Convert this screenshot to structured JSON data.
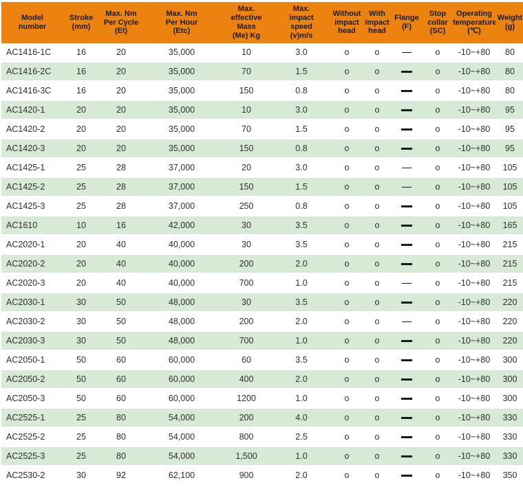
{
  "colors": {
    "header_bg": "#EC8210",
    "stripe_bg": "#D7EAD5",
    "header_text": "#1B1B24",
    "cell_text": "#2E2E2E",
    "dash_color": "#1A1A1A"
  },
  "legend": {
    "circle_mark": "o",
    "dash_thin_meaning": "thin horizontal dash mark",
    "dash_bold_meaning": "bold horizontal dash mark"
  },
  "table": {
    "columns": [
      {
        "key": "model",
        "label": "Model number",
        "lines": [
          "Model",
          "number"
        ]
      },
      {
        "key": "stroke",
        "label": "Stroke (mm)",
        "lines": [
          "Stroke",
          "(mm)"
        ]
      },
      {
        "key": "per_cycle",
        "label": "Max. Nm Per Cycle (Et)",
        "lines": [
          "Max. Nm",
          "Per Cycle",
          "(Et)"
        ]
      },
      {
        "key": "per_hour",
        "label": "Max. Nm Per Hour (Etc)",
        "lines": [
          "Max. Nm",
          "Per Hour",
          "(Etc)"
        ]
      },
      {
        "key": "mass",
        "label": "Max. effective Mass (Me) Kg",
        "lines": [
          "Max.",
          "effective",
          "Mass",
          "(Me) Kg"
        ]
      },
      {
        "key": "speed",
        "label": "Max. impact speed (v)m/s",
        "lines": [
          "Max.",
          "impact",
          "speed",
          "(v)m/s"
        ]
      },
      {
        "key": "without_head",
        "label": "Without impact head",
        "lines": [
          "Without",
          "impact",
          "head"
        ]
      },
      {
        "key": "with_head",
        "label": "With impact head",
        "lines": [
          "With",
          "impact",
          "head"
        ]
      },
      {
        "key": "flange",
        "label": "Flange (F)",
        "lines": [
          "Flange",
          "(F)"
        ]
      },
      {
        "key": "stop_collar",
        "label": "Stop collar (SC)",
        "lines": [
          "Stop",
          "collar",
          "(SC)"
        ]
      },
      {
        "key": "temp",
        "label": "Operating temperature (℃)",
        "lines": [
          "Operating",
          "temperature",
          "(℃)"
        ]
      },
      {
        "key": "weight",
        "label": "Weight (g)",
        "lines": [
          "Weight",
          "(g)"
        ]
      }
    ],
    "rows": [
      {
        "model": "AC1416-1C",
        "stroke": "16",
        "per_cycle": "20",
        "per_hour": "35,000",
        "mass": "10",
        "speed": "3.0",
        "without_head": "o",
        "with_head": "o",
        "flange": "dash-thin",
        "stop_collar": "o",
        "temp": "-10~+80",
        "weight": "80"
      },
      {
        "model": "AC1416-2C",
        "stroke": "16",
        "per_cycle": "20",
        "per_hour": "35,000",
        "mass": "70",
        "speed": "1.5",
        "without_head": "o",
        "with_head": "o",
        "flange": "dash-bold",
        "stop_collar": "o",
        "temp": "-10~+80",
        "weight": "80"
      },
      {
        "model": "AC1416-3C",
        "stroke": "16",
        "per_cycle": "20",
        "per_hour": "35,000",
        "mass": "150",
        "speed": "0.8",
        "without_head": "o",
        "with_head": "o",
        "flange": "dash-bold",
        "stop_collar": "o",
        "temp": "-10~+80",
        "weight": "80"
      },
      {
        "model": "AC1420-1",
        "stroke": "20",
        "per_cycle": "20",
        "per_hour": "35,000",
        "mass": "10",
        "speed": "3.0",
        "without_head": "o",
        "with_head": "o",
        "flange": "dash-bold",
        "stop_collar": "o",
        "temp": "-10~+80",
        "weight": "95"
      },
      {
        "model": "AC1420-2",
        "stroke": "20",
        "per_cycle": "20",
        "per_hour": "35,000",
        "mass": "70",
        "speed": "1.5",
        "without_head": "o",
        "with_head": "o",
        "flange": "dash-bold",
        "stop_collar": "o",
        "temp": "-10~+80",
        "weight": "95"
      },
      {
        "model": "AC1420-3",
        "stroke": "20",
        "per_cycle": "20",
        "per_hour": "35,000",
        "mass": "150",
        "speed": "0.8",
        "without_head": "o",
        "with_head": "o",
        "flange": "dash-bold",
        "stop_collar": "o",
        "temp": "-10~+80",
        "weight": "95"
      },
      {
        "model": "AC1425-1",
        "stroke": "25",
        "per_cycle": "28",
        "per_hour": "37,000",
        "mass": "20",
        "speed": "3.0",
        "without_head": "o",
        "with_head": "o",
        "flange": "dash-thin",
        "stop_collar": "o",
        "temp": "-10~+80",
        "weight": "105"
      },
      {
        "model": "AC1425-2",
        "stroke": "25",
        "per_cycle": "28",
        "per_hour": "37,000",
        "mass": "150",
        "speed": "1.5",
        "without_head": "o",
        "with_head": "o",
        "flange": "dash-thin",
        "stop_collar": "o",
        "temp": "-10~+80",
        "weight": "105"
      },
      {
        "model": "AC1425-3",
        "stroke": "25",
        "per_cycle": "28",
        "per_hour": "37,000",
        "mass": "250",
        "speed": "0.8",
        "without_head": "o",
        "with_head": "o",
        "flange": "dash-bold",
        "stop_collar": "o",
        "temp": "-10~+80",
        "weight": "105"
      },
      {
        "model": "AC1610",
        "stroke": "10",
        "per_cycle": "16",
        "per_hour": "42,000",
        "mass": "30",
        "speed": "3.5",
        "without_head": "o",
        "with_head": "o",
        "flange": "dash-bold",
        "stop_collar": "o",
        "temp": "-10~+80",
        "weight": "165"
      },
      {
        "model": "AC2020-1",
        "stroke": "20",
        "per_cycle": "40",
        "per_hour": "40,000",
        "mass": "30",
        "speed": "3.5",
        "without_head": "o",
        "with_head": "o",
        "flange": "dash-bold",
        "stop_collar": "o",
        "temp": "-10~+80",
        "weight": "215"
      },
      {
        "model": "AC2020-2",
        "stroke": "20",
        "per_cycle": "40",
        "per_hour": "40,000",
        "mass": "200",
        "speed": "2.0",
        "without_head": "o",
        "with_head": "o",
        "flange": "dash-bold",
        "stop_collar": "o",
        "temp": "-10~+80",
        "weight": "215"
      },
      {
        "model": "AC2020-3",
        "stroke": "20",
        "per_cycle": "40",
        "per_hour": "40,000",
        "mass": "700",
        "speed": "1.0",
        "without_head": "o",
        "with_head": "o",
        "flange": "dash-thin",
        "stop_collar": "o",
        "temp": "-10~+80",
        "weight": "215"
      },
      {
        "model": "AC2030-1",
        "stroke": "30",
        "per_cycle": "50",
        "per_hour": "48,000",
        "mass": "30",
        "speed": "3.5",
        "without_head": "o",
        "with_head": "o",
        "flange": "dash-bold",
        "stop_collar": "o",
        "temp": "-10~+80",
        "weight": "220"
      },
      {
        "model": "AC2030-2",
        "stroke": "30",
        "per_cycle": "50",
        "per_hour": "48,000",
        "mass": "200",
        "speed": "2.0",
        "without_head": "o",
        "with_head": "o",
        "flange": "dash-thin",
        "stop_collar": "o",
        "temp": "-10~+80",
        "weight": "220"
      },
      {
        "model": "AC2030-3",
        "stroke": "30",
        "per_cycle": "50",
        "per_hour": "48,000",
        "mass": "700",
        "speed": "1.0",
        "without_head": "o",
        "with_head": "o",
        "flange": "dash-bold",
        "stop_collar": "o",
        "temp": "-10~+80",
        "weight": "220"
      },
      {
        "model": "AC2050-1",
        "stroke": "50",
        "per_cycle": "60",
        "per_hour": "60,000",
        "mass": "60",
        "speed": "3.5",
        "without_head": "o",
        "with_head": "o",
        "flange": "dash-bold",
        "stop_collar": "o",
        "temp": "-10~+80",
        "weight": "300"
      },
      {
        "model": "AC2050-2",
        "stroke": "50",
        "per_cycle": "60",
        "per_hour": "60,000",
        "mass": "400",
        "speed": "2.0",
        "without_head": "o",
        "with_head": "o",
        "flange": "dash-bold",
        "stop_collar": "o",
        "temp": "-10~+80",
        "weight": "300"
      },
      {
        "model": "AC2050-3",
        "stroke": "50",
        "per_cycle": "60",
        "per_hour": "60,000",
        "mass": "1200",
        "speed": "1.0",
        "without_head": "o",
        "with_head": "o",
        "flange": "dash-bold",
        "stop_collar": "o",
        "temp": "-10~+80",
        "weight": "300"
      },
      {
        "model": "AC2525-1",
        "stroke": "25",
        "per_cycle": "80",
        "per_hour": "54,000",
        "mass": "200",
        "speed": "4.0",
        "without_head": "o",
        "with_head": "o",
        "flange": "dash-bold",
        "stop_collar": "o",
        "temp": "-10~+80",
        "weight": "330"
      },
      {
        "model": "AC2525-2",
        "stroke": "25",
        "per_cycle": "80",
        "per_hour": "54,000",
        "mass": "800",
        "speed": "2.5",
        "without_head": "o",
        "with_head": "o",
        "flange": "dash-bold",
        "stop_collar": "o",
        "temp": "-10~+80",
        "weight": "330"
      },
      {
        "model": "AC2525-3",
        "stroke": "25",
        "per_cycle": "80",
        "per_hour": "54,000",
        "mass": "1,500",
        "speed": "1.0",
        "without_head": "o",
        "with_head": "o",
        "flange": "dash-bold",
        "stop_collar": "o",
        "temp": "-10~+80",
        "weight": "330"
      },
      {
        "model": "AC2530-2",
        "stroke": "30",
        "per_cycle": "92",
        "per_hour": "62,100",
        "mass": "900",
        "speed": "2.0",
        "without_head": "o",
        "with_head": "o",
        "flange": "dash-bold",
        "stop_collar": "o",
        "temp": "-10~+80",
        "weight": "350"
      }
    ]
  }
}
